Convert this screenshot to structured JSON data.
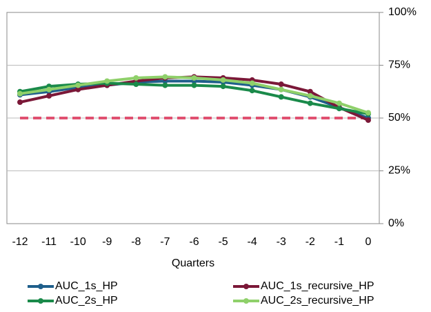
{
  "chart_data": {
    "type": "line",
    "x_label": "Quarters",
    "categories": [
      "-12",
      "-11",
      "-10",
      "-9",
      "-8",
      "-7",
      "-6",
      "-5",
      "-4",
      "-3",
      "-2",
      "-1",
      "0"
    ],
    "series": [
      {
        "name": "AUC_1s_HP",
        "color": "#1f5f8b",
        "values": [
          61,
          62.5,
          64.5,
          65.5,
          67,
          67.5,
          67.5,
          67,
          65.5,
          63.5,
          60,
          55,
          50
        ]
      },
      {
        "name": "AUC_1s_recursive_HP",
        "color": "#7b1838",
        "values": [
          57.5,
          60.5,
          63.5,
          65.5,
          67.5,
          69,
          69.5,
          69,
          68,
          66,
          62.5,
          55,
          49
        ]
      },
      {
        "name": "AUC_2s_HP",
        "color": "#1a8a4a",
        "values": [
          62.5,
          65,
          66,
          66.5,
          66,
          65.5,
          65.5,
          65,
          63,
          60,
          57,
          54.5,
          52
        ]
      },
      {
        "name": "AUC_2s_recursive_HP",
        "color": "#8fd06a",
        "values": [
          61.5,
          63.5,
          65.5,
          67.5,
          69,
          69.5,
          69,
          68,
          66.5,
          63.5,
          60.5,
          57,
          52.5
        ]
      }
    ],
    "reference_line": {
      "value": 50,
      "color": "#e05070"
    },
    "ylim": [
      0,
      100
    ],
    "yticks": [
      {
        "value": 0,
        "label": "0%"
      },
      {
        "value": 25,
        "label": "25%"
      },
      {
        "value": 50,
        "label": "50%"
      },
      {
        "value": 75,
        "label": "75%"
      },
      {
        "value": 100,
        "label": "100%"
      }
    ],
    "grid": true
  }
}
